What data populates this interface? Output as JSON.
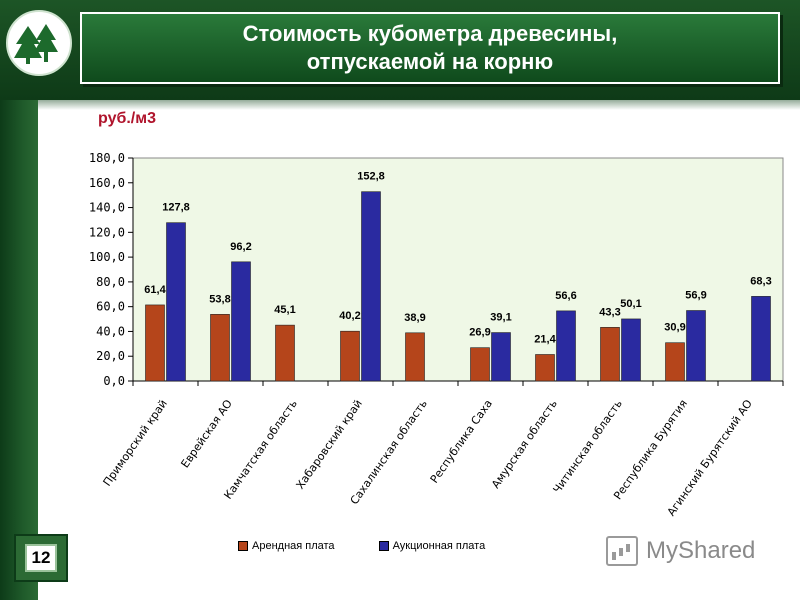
{
  "slide": {
    "title_line1": "Стоимость кубометра древесины,",
    "title_line2": "отпускаемой на корню",
    "unit": "руб./м3",
    "page_number": "12",
    "watermark": "MyShared"
  },
  "colors": {
    "series_rent": "#b5451b",
    "series_auction": "#2a2aa0",
    "plot_bg": "#eff8e6",
    "theme_green": "#1d5526"
  },
  "icons": [
    "tree-logo-icon",
    "presentation-icon"
  ],
  "chart_data": {
    "type": "bar",
    "categories": [
      "Приморский край",
      "Еврейская АО",
      "Камчатская область",
      "Хабаровский край",
      "Сахалинская область",
      "Республика Саха",
      "Амурская область",
      "Читинская область",
      "Республика Бурятия",
      "Агинский Бурятский АО"
    ],
    "series": [
      {
        "name": "Арендная плата",
        "values": [
          61.4,
          53.8,
          45.1,
          40.2,
          38.9,
          26.9,
          21.4,
          43.3,
          30.9,
          null
        ],
        "labels": [
          "61,4",
          "53,8",
          "45,1",
          "40,2",
          "38,9",
          "26,9",
          "21,4",
          "43,3",
          "30,9",
          ""
        ]
      },
      {
        "name": "Аукционная плата",
        "values": [
          127.8,
          96.2,
          null,
          152.8,
          null,
          39.1,
          56.6,
          50.1,
          56.9,
          68.3
        ],
        "labels": [
          "127,8",
          "96,2",
          "",
          "152,8",
          "",
          "39,1",
          "56,6",
          "50,1",
          "56,9",
          "68,3"
        ]
      }
    ],
    "y_ticks": [
      "0,0",
      "20,0",
      "40,0",
      "60,0",
      "80,0",
      "100,0",
      "120,0",
      "140,0",
      "160,0",
      "180,0"
    ],
    "ylim": [
      0,
      180
    ],
    "ytick_step": 20,
    "title": "",
    "xlabel": "",
    "ylabel": "",
    "legend_position": "bottom",
    "grid": false
  }
}
